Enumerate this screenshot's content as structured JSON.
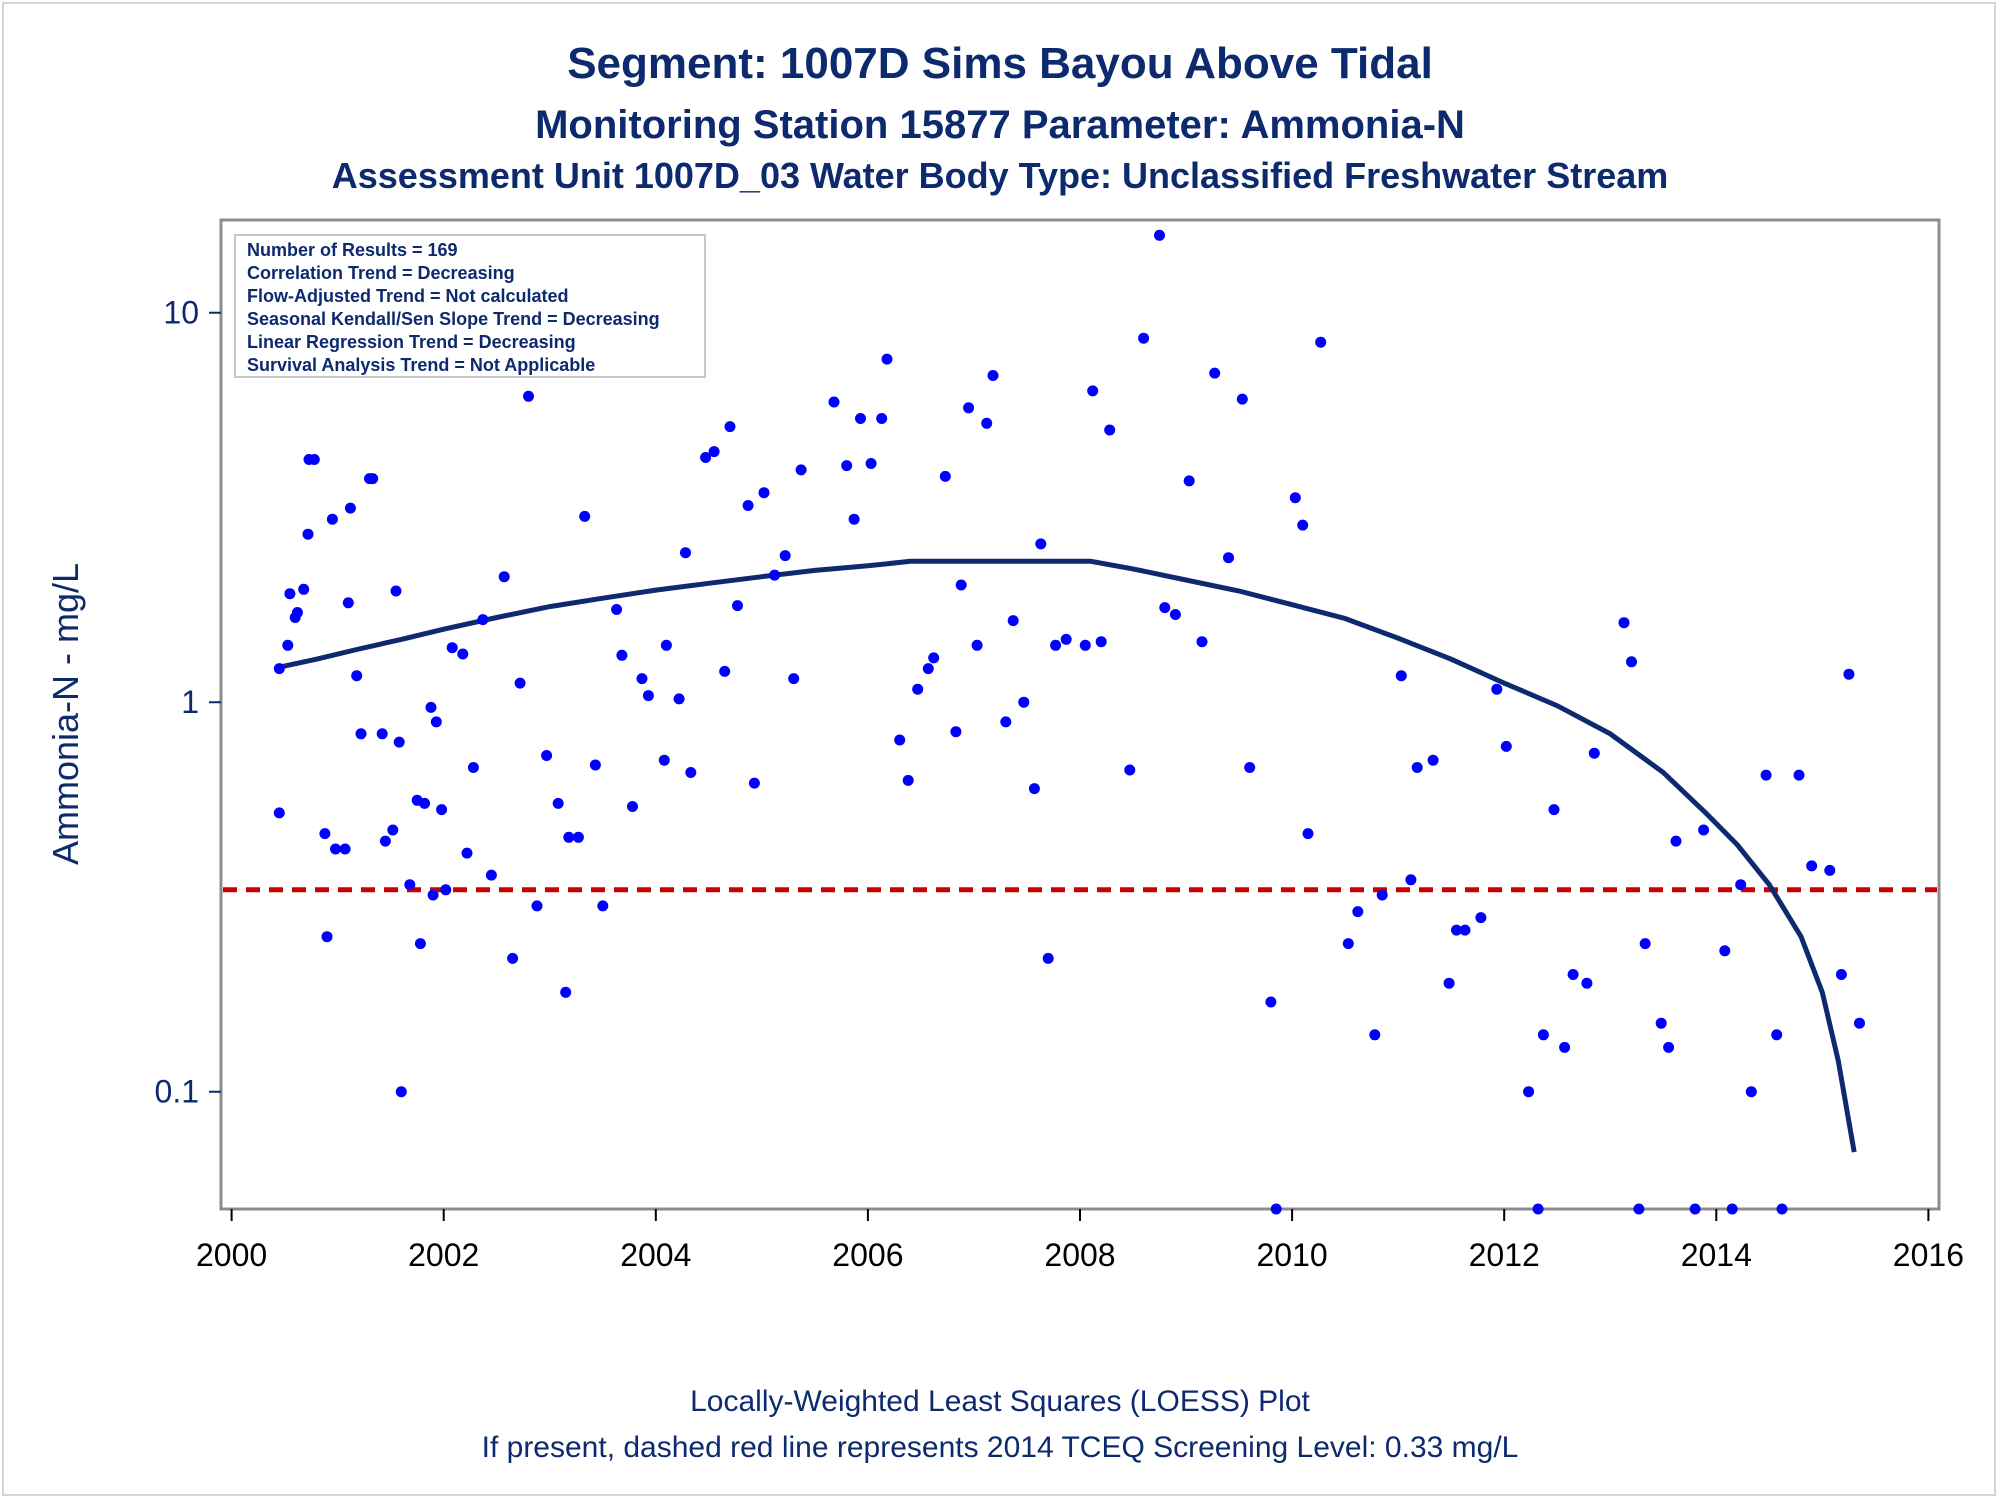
{
  "chart_data": {
    "type": "scatter",
    "title": "Segment: 1007D  Sims Bayou Above Tidal",
    "subtitle": "Monitoring Station 15877 Parameter: Ammonia-N",
    "subtitle2": "Assessment Unit 1007D_03   Water Body Type: Unclassified Freshwater Stream",
    "xlabel": "",
    "ylabel": "Ammonia-N - mg/L",
    "x_ticks": [
      2000,
      2002,
      2004,
      2006,
      2008,
      2010,
      2012,
      2014,
      2016
    ],
    "y_ticks": [
      0.1,
      1,
      10
    ],
    "y_tick_labels": [
      "0.1",
      "1",
      "10"
    ],
    "xlim": [
      1999.9,
      2016.1
    ],
    "ylim": [
      0.05,
      17.3
    ],
    "y_scale": "log",
    "grid": false,
    "colors": {
      "points": "#0000ff",
      "loess": "#0d2a6e",
      "screening": "#cc0000",
      "text": "#0d2a6e"
    },
    "stats_box": [
      "Number of Results = 169",
      "Correlation Trend = Decreasing",
      "Flow-Adjusted Trend = Not calculated",
      "Seasonal Kendall/Sen Slope Trend = Decreasing",
      "Linear Regression Trend = Decreasing",
      "Survival Analysis Trend = Not Applicable"
    ],
    "footnotes": [
      "Locally-Weighted Least Squares (LOESS) Plot",
      "If present, dashed red line represents 2014 TCEQ Screening Level: 0.33 mg/L"
    ],
    "screening_level": 0.33,
    "points": [
      [
        2000.45,
        1.22
      ],
      [
        2000.45,
        0.52
      ],
      [
        2000.53,
        1.4
      ],
      [
        2000.55,
        1.9
      ],
      [
        2000.6,
        1.65
      ],
      [
        2000.62,
        1.7
      ],
      [
        2000.68,
        1.95
      ],
      [
        2000.72,
        2.7
      ],
      [
        2000.73,
        4.2
      ],
      [
        2000.78,
        4.2
      ],
      [
        2000.88,
        0.46
      ],
      [
        2000.9,
        0.25
      ],
      [
        2000.95,
        2.95
      ],
      [
        2000.98,
        0.42
      ],
      [
        2001.07,
        0.42
      ],
      [
        2001.1,
        1.8
      ],
      [
        2001.12,
        3.15
      ],
      [
        2001.18,
        1.17
      ],
      [
        2001.22,
        0.83
      ],
      [
        2001.3,
        3.75
      ],
      [
        2001.33,
        3.75
      ],
      [
        2001.42,
        0.83
      ],
      [
        2001.45,
        0.44
      ],
      [
        2001.52,
        0.47
      ],
      [
        2001.55,
        1.93
      ],
      [
        2001.58,
        0.79
      ],
      [
        2001.6,
        0.1
      ],
      [
        2001.68,
        0.34
      ],
      [
        2001.75,
        0.56
      ],
      [
        2001.78,
        0.24
      ],
      [
        2001.82,
        0.55
      ],
      [
        2001.88,
        0.97
      ],
      [
        2001.9,
        0.32
      ],
      [
        2001.93,
        0.89
      ],
      [
        2001.98,
        0.53
      ],
      [
        2002.02,
        0.33
      ],
      [
        2002.08,
        1.38
      ],
      [
        2002.18,
        1.33
      ],
      [
        2002.22,
        0.41
      ],
      [
        2002.28,
        0.68
      ],
      [
        2002.37,
        1.63
      ],
      [
        2002.45,
        0.36
      ],
      [
        2002.57,
        2.1
      ],
      [
        2002.65,
        0.22
      ],
      [
        2002.72,
        1.12
      ],
      [
        2002.8,
        6.1
      ],
      [
        2002.88,
        0.3
      ],
      [
        2002.97,
        0.73
      ],
      [
        2003.08,
        0.55
      ],
      [
        2003.15,
        0.18
      ],
      [
        2003.18,
        0.45
      ],
      [
        2003.27,
        0.45
      ],
      [
        2003.33,
        3.0
      ],
      [
        2003.43,
        0.69
      ],
      [
        2003.5,
        0.3
      ],
      [
        2003.63,
        1.73
      ],
      [
        2003.68,
        1.32
      ],
      [
        2003.78,
        0.54
      ],
      [
        2003.87,
        1.15
      ],
      [
        2003.93,
        1.04
      ],
      [
        2004.08,
        0.71
      ],
      [
        2004.1,
        1.4
      ],
      [
        2004.22,
        1.02
      ],
      [
        2004.28,
        2.42
      ],
      [
        2004.33,
        0.66
      ],
      [
        2004.47,
        4.25
      ],
      [
        2004.55,
        4.4
      ],
      [
        2004.65,
        1.2
      ],
      [
        2004.7,
        5.1
      ],
      [
        2004.77,
        1.77
      ],
      [
        2004.87,
        3.2
      ],
      [
        2004.93,
        0.62
      ],
      [
        2005.02,
        3.45
      ],
      [
        2005.12,
        2.12
      ],
      [
        2005.22,
        2.38
      ],
      [
        2005.3,
        1.15
      ],
      [
        2005.37,
        3.95
      ],
      [
        2005.68,
        5.9
      ],
      [
        2005.8,
        4.05
      ],
      [
        2005.87,
        2.95
      ],
      [
        2005.93,
        5.35
      ],
      [
        2006.03,
        4.1
      ],
      [
        2006.13,
        5.35
      ],
      [
        2006.18,
        7.6
      ],
      [
        2006.3,
        0.8
      ],
      [
        2006.38,
        0.63
      ],
      [
        2006.47,
        1.08
      ],
      [
        2006.57,
        1.22
      ],
      [
        2006.62,
        1.3
      ],
      [
        2006.73,
        3.8
      ],
      [
        2006.83,
        0.84
      ],
      [
        2006.88,
        2.0
      ],
      [
        2006.95,
        5.7
      ],
      [
        2007.03,
        1.4
      ],
      [
        2007.12,
        5.2
      ],
      [
        2007.18,
        6.9
      ],
      [
        2007.3,
        0.89
      ],
      [
        2007.37,
        1.62
      ],
      [
        2007.47,
        1.0
      ],
      [
        2007.57,
        0.6
      ],
      [
        2007.63,
        2.55
      ],
      [
        2007.7,
        0.22
      ],
      [
        2007.77,
        1.4
      ],
      [
        2007.87,
        1.45
      ],
      [
        2008.05,
        1.4
      ],
      [
        2008.12,
        6.3
      ],
      [
        2008.2,
        1.43
      ],
      [
        2008.28,
        5.0
      ],
      [
        2008.47,
        0.67
      ],
      [
        2008.6,
        8.6
      ],
      [
        2008.75,
        15.8
      ],
      [
        2008.8,
        1.75
      ],
      [
        2008.9,
        1.68
      ],
      [
        2009.03,
        3.7
      ],
      [
        2009.15,
        1.43
      ],
      [
        2009.27,
        7.0
      ],
      [
        2009.4,
        2.35
      ],
      [
        2009.53,
        6.0
      ],
      [
        2009.6,
        0.68
      ],
      [
        2009.8,
        0.17
      ],
      [
        2009.85,
        0.05
      ],
      [
        2010.03,
        3.35
      ],
      [
        2010.1,
        2.85
      ],
      [
        2010.15,
        0.46
      ],
      [
        2010.27,
        8.4
      ],
      [
        2010.53,
        0.24
      ],
      [
        2010.62,
        0.29
      ],
      [
        2010.78,
        0.14
      ],
      [
        2010.85,
        0.32
      ],
      [
        2011.03,
        1.17
      ],
      [
        2011.12,
        0.35
      ],
      [
        2011.18,
        0.68
      ],
      [
        2011.33,
        0.71
      ],
      [
        2011.48,
        0.19
      ],
      [
        2011.55,
        0.26
      ],
      [
        2011.63,
        0.26
      ],
      [
        2011.78,
        0.28
      ],
      [
        2011.93,
        1.08
      ],
      [
        2012.02,
        0.77
      ],
      [
        2012.23,
        0.1
      ],
      [
        2012.32,
        0.05
      ],
      [
        2012.37,
        0.14
      ],
      [
        2012.47,
        0.53
      ],
      [
        2012.57,
        0.13
      ],
      [
        2012.65,
        0.2
      ],
      [
        2012.78,
        0.19
      ],
      [
        2012.85,
        0.74
      ],
      [
        2013.13,
        1.6
      ],
      [
        2013.2,
        1.27
      ],
      [
        2013.27,
        0.05
      ],
      [
        2013.33,
        0.24
      ],
      [
        2013.48,
        0.15
      ],
      [
        2013.55,
        0.13
      ],
      [
        2013.62,
        0.44
      ],
      [
        2013.8,
        0.05
      ],
      [
        2013.88,
        0.47
      ],
      [
        2014.08,
        0.23
      ],
      [
        2014.15,
        0.05
      ],
      [
        2014.23,
        0.34
      ],
      [
        2014.33,
        0.1
      ],
      [
        2014.47,
        0.65
      ],
      [
        2014.57,
        0.14
      ],
      [
        2014.62,
        0.05
      ],
      [
        2014.78,
        0.65
      ],
      [
        2014.9,
        0.38
      ],
      [
        2015.07,
        0.37
      ],
      [
        2015.18,
        0.2
      ],
      [
        2015.25,
        1.18
      ],
      [
        2015.35,
        0.15
      ]
    ],
    "loess": [
      [
        2000.45,
        1.23
      ],
      [
        2000.8,
        1.29
      ],
      [
        2001.2,
        1.37
      ],
      [
        2001.6,
        1.45
      ],
      [
        2002.0,
        1.54
      ],
      [
        2002.5,
        1.65
      ],
      [
        2003.0,
        1.76
      ],
      [
        2003.5,
        1.85
      ],
      [
        2004.0,
        1.94
      ],
      [
        2004.5,
        2.02
      ],
      [
        2005.0,
        2.1
      ],
      [
        2005.5,
        2.18
      ],
      [
        2006.0,
        2.24
      ],
      [
        2006.4,
        2.3
      ],
      [
        2007.0,
        2.3
      ],
      [
        2007.6,
        2.3
      ],
      [
        2008.1,
        2.3
      ],
      [
        2008.5,
        2.2
      ],
      [
        2009.0,
        2.06
      ],
      [
        2009.5,
        1.93
      ],
      [
        2010.0,
        1.78
      ],
      [
        2010.5,
        1.64
      ],
      [
        2011.0,
        1.46
      ],
      [
        2011.5,
        1.29
      ],
      [
        2012.0,
        1.12
      ],
      [
        2012.5,
        0.98
      ],
      [
        2013.0,
        0.83
      ],
      [
        2013.5,
        0.66
      ],
      [
        2013.9,
        0.52
      ],
      [
        2014.2,
        0.43
      ],
      [
        2014.5,
        0.34
      ],
      [
        2014.8,
        0.25
      ],
      [
        2015.0,
        0.18
      ],
      [
        2015.15,
        0.12
      ],
      [
        2015.3,
        0.07
      ]
    ]
  }
}
